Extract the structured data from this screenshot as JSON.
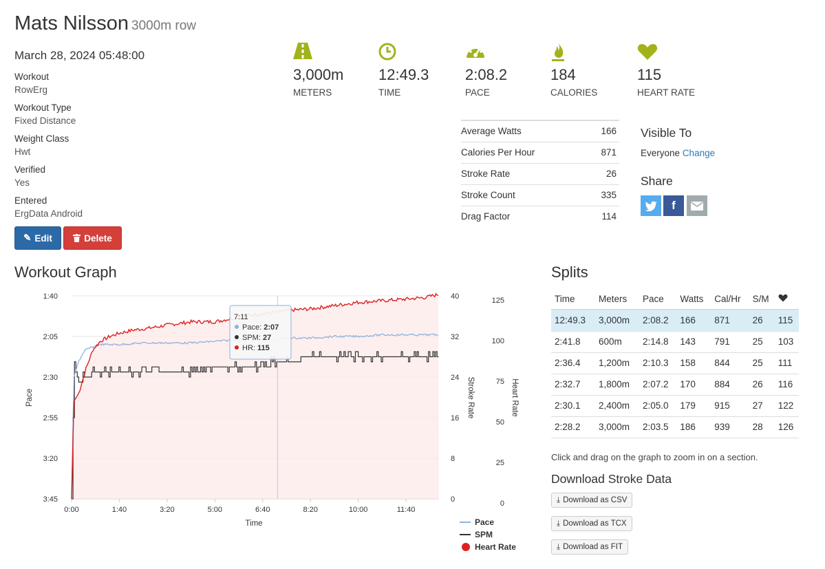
{
  "header": {
    "name": "Mats Nilsson",
    "subtitle": "3000m row",
    "date": "March 28, 2024 05:48:00"
  },
  "details": [
    {
      "label": "Workout",
      "value": "RowErg"
    },
    {
      "label": "Workout Type",
      "value": "Fixed Distance"
    },
    {
      "label": "Weight Class",
      "value": "Hwt"
    },
    {
      "label": "Verified",
      "value": "Yes"
    },
    {
      "label": "Entered",
      "value": "ErgData Android"
    }
  ],
  "buttons": {
    "edit": "Edit",
    "delete": "Delete"
  },
  "stats": [
    {
      "icon": "road-icon",
      "value": "3,000m",
      "caption": "METERS",
      "color": "#a3b21b"
    },
    {
      "icon": "clock-icon",
      "value": "12:49.3",
      "caption": "TIME",
      "color": "#a3b21b"
    },
    {
      "icon": "speedometer-icon",
      "value": "2:08.2",
      "caption": "PACE",
      "color": "#a3b21b"
    },
    {
      "icon": "flame-icon",
      "value": "184",
      "caption": "CALORIES",
      "color": "#a3b21b"
    },
    {
      "icon": "heart-icon",
      "value": "115",
      "caption": "HEART RATE",
      "color": "#a3b21b"
    }
  ],
  "metrics": [
    {
      "label": "Average Watts",
      "value": "166"
    },
    {
      "label": "Calories Per Hour",
      "value": "871"
    },
    {
      "label": "Stroke Rate",
      "value": "26"
    },
    {
      "label": "Stroke Count",
      "value": "335"
    },
    {
      "label": "Drag Factor",
      "value": "114"
    }
  ],
  "visibility": {
    "heading": "Visible To",
    "value": "Everyone",
    "change_link": "Change"
  },
  "share": {
    "heading": "Share"
  },
  "graph": {
    "heading": "Workout Graph",
    "tooltip": {
      "time": "7:11",
      "pace_label": "Pace:",
      "pace": "2:07",
      "spm_label": "SPM:",
      "spm": "27",
      "hr_label": "HR:",
      "hr": "115"
    }
  },
  "chart_data": {
    "type": "line",
    "xlabel": "Time",
    "x_ticks": [
      "0:00",
      "1:40",
      "3:20",
      "5:00",
      "6:40",
      "8:20",
      "10:00",
      "11:40"
    ],
    "pace_axis": {
      "label": "Pace",
      "ticks": [
        "1:40",
        "2:05",
        "2:30",
        "2:55",
        "3:20",
        "3:45"
      ],
      "reversed": true
    },
    "spm_axis": {
      "label": "Stroke Rate",
      "ticks": [
        "40",
        "32",
        "24",
        "16",
        "8",
        "0"
      ],
      "range": [
        0,
        40
      ]
    },
    "hr_axis": {
      "label": "Heart Rate",
      "ticks": [
        "125",
        "100",
        "75",
        "50",
        "25",
        "0"
      ],
      "range": [
        0,
        125
      ]
    },
    "series": [
      {
        "name": "Pace",
        "color": "#8fb2dd",
        "x": [
          0,
          5,
          15,
          30,
          60,
          100,
          150,
          200,
          250,
          300,
          350,
          400,
          431,
          450,
          500,
          550,
          600,
          650,
          700,
          769
        ],
        "y_seconds": [
          225,
          150,
          140,
          133,
          130,
          130,
          129,
          129,
          129,
          128,
          127,
          127,
          127,
          126,
          126,
          125,
          125,
          124,
          124,
          124
        ]
      },
      {
        "name": "SPM",
        "color": "#333333",
        "x": [
          0,
          5,
          15,
          30,
          60,
          100,
          150,
          200,
          250,
          300,
          350,
          400,
          431,
          450,
          500,
          550,
          600,
          650,
          700,
          769
        ],
        "y": [
          0,
          27,
          23,
          24,
          25,
          25,
          25,
          25,
          25,
          26,
          26,
          26,
          27,
          27,
          28,
          28,
          28,
          28,
          28,
          28
        ]
      },
      {
        "name": "Heart Rate",
        "color": "#e02020",
        "x": [
          0,
          5,
          15,
          30,
          45,
          60,
          80,
          100,
          130,
          160,
          200,
          250,
          300,
          350,
          400,
          431,
          450,
          500,
          550,
          600,
          650,
          700,
          740,
          769
        ],
        "y": [
          0,
          60,
          65,
          80,
          92,
          97,
          100,
          102,
          104,
          105,
          107,
          109,
          109,
          112,
          114,
          115,
          116,
          117,
          119,
          121,
          122,
          123,
          124,
          126
        ]
      }
    ]
  },
  "legend": [
    "Pace",
    "SPM",
    "Heart Rate"
  ],
  "splits": {
    "heading": "Splits",
    "columns": [
      "Time",
      "Meters",
      "Pace",
      "Watts",
      "Cal/Hr",
      "S/M"
    ],
    "hr_column_icon": "heart-icon",
    "rows": [
      [
        "12:49.3",
        "3,000m",
        "2:08.2",
        "166",
        "871",
        "26",
        "115"
      ],
      [
        "2:41.8",
        "600m",
        "2:14.8",
        "143",
        "791",
        "25",
        "103"
      ],
      [
        "2:36.4",
        "1,200m",
        "2:10.3",
        "158",
        "844",
        "25",
        "111"
      ],
      [
        "2:32.7",
        "1,800m",
        "2:07.2",
        "170",
        "884",
        "26",
        "116"
      ],
      [
        "2:30.1",
        "2,400m",
        "2:05.0",
        "179",
        "915",
        "27",
        "122"
      ],
      [
        "2:28.2",
        "3,000m",
        "2:03.5",
        "186",
        "939",
        "28",
        "126"
      ]
    ]
  },
  "note": "Click and drag on the graph to zoom in on a section.",
  "download": {
    "heading": "Download Stroke Data",
    "buttons": [
      "Download as CSV",
      "Download as TCX",
      "Download as FIT"
    ]
  }
}
